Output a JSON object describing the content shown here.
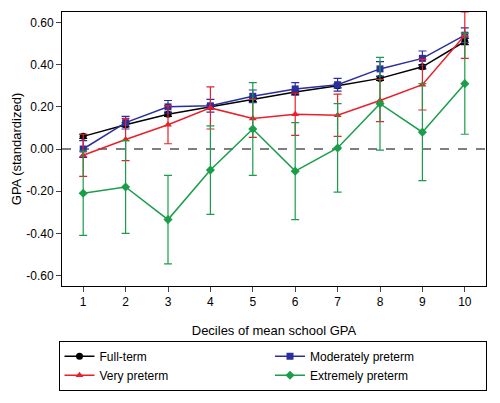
{
  "chart_data": {
    "type": "line",
    "x_label": "Deciles of mean school GPA",
    "y_label": "GPA (standardized)",
    "x": [
      1,
      2,
      3,
      4,
      5,
      6,
      7,
      8,
      9,
      10
    ],
    "xlim": [
      0.5,
      10.5
    ],
    "xticks": [
      1,
      2,
      3,
      4,
      5,
      6,
      7,
      8,
      9,
      10
    ],
    "ylim": [
      -0.65,
      0.65
    ],
    "yticks": [
      {
        "value": -0.6,
        "label": "-0.60"
      },
      {
        "value": -0.4,
        "label": "-0.40"
      },
      {
        "value": -0.2,
        "label": "-0.20"
      },
      {
        "value": 0,
        "label": "0.00"
      },
      {
        "value": 0.2,
        "label": "0.20"
      },
      {
        "value": 0.4,
        "label": "0.40"
      },
      {
        "value": 0.6,
        "label": "0.60"
      }
    ],
    "grid": false,
    "legend": "bottom",
    "reference_line": {
      "y": 0,
      "line_style": "dashed"
    },
    "series": [
      {
        "name": "Full-term",
        "color": "#000000",
        "marker": "circle",
        "values": [
          0.06,
          0.115,
          0.165,
          0.2,
          0.235,
          0.27,
          0.3,
          0.335,
          0.39,
          0.51
        ],
        "errors": [
          0.01,
          0.01,
          0.01,
          0.01,
          0.01,
          0.01,
          0.01,
          0.01,
          0.01,
          0.015
        ]
      },
      {
        "name": "Moderately preterm",
        "color": "#2b2f9e",
        "marker": "square",
        "values": [
          0.0,
          0.125,
          0.2,
          0.205,
          0.25,
          0.285,
          0.305,
          0.38,
          0.43,
          0.54
        ],
        "errors": [
          0.04,
          0.03,
          0.03,
          0.03,
          0.03,
          0.03,
          0.03,
          0.035,
          0.035,
          0.035
        ]
      },
      {
        "name": "Very preterm",
        "color": "#e8202a",
        "marker": "triangle",
        "values": [
          -0.03,
          0.045,
          0.115,
          0.195,
          0.145,
          0.165,
          0.16,
          0.23,
          0.305,
          0.54
        ],
        "errors": [
          0.1,
          0.1,
          0.09,
          0.1,
          0.09,
          0.1,
          0.1,
          0.1,
          0.12,
          0.11
        ]
      },
      {
        "name": "Extremely preterm",
        "color": "#1a9e4a",
        "marker": "diamond",
        "values": [
          -0.21,
          -0.18,
          -0.335,
          -0.1,
          0.095,
          -0.105,
          0.005,
          0.215,
          0.08,
          0.31
        ],
        "errors": [
          0.2,
          0.22,
          0.21,
          0.21,
          0.22,
          0.23,
          0.21,
          0.22,
          0.23,
          0.24
        ]
      }
    ]
  }
}
